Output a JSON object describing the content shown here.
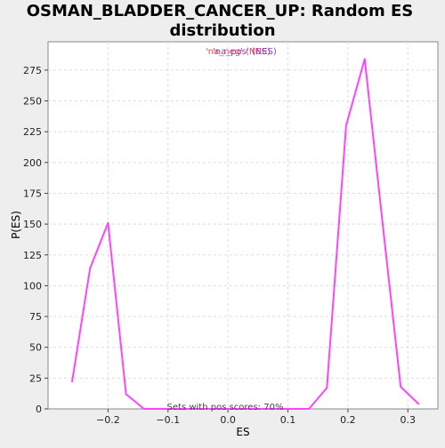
{
  "chart_data": {
    "type": "line",
    "title": "OSMAN_BLADDER_CANCER_UP: Random ES distribution",
    "title_lines": [
      "OSMAN_BLADDER_CANCER_UP: Random ES",
      "distribution"
    ],
    "xlabel": "ES",
    "ylabel": "P(ES)",
    "xlim": [
      -0.3,
      0.35
    ],
    "ylim": [
      0,
      298
    ],
    "x_ticks": [
      -0.2,
      -0.1,
      0.0,
      0.1,
      0.2,
      0.3
    ],
    "x_tick_labels": [
      "−0.2",
      "−0.1",
      "0.0",
      "0.1",
      "0.2",
      "0.3"
    ],
    "y_ticks": [
      0,
      25,
      50,
      75,
      100,
      125,
      150,
      175,
      200,
      225,
      250,
      275
    ],
    "y_tick_labels": [
      "0",
      "25",
      "50",
      "75",
      "100",
      "125",
      "150",
      "175",
      "200",
      "225",
      "250",
      "275"
    ],
    "grid": true,
    "legend_placement": "top-center",
    "legend": [
      {
        "text": "'na_neg' (NES)",
        "color": "#ff4444"
      },
      {
        "text": "'na_pos' (NES)",
        "color": "#8844cc"
      }
    ],
    "annotation": "Sets with pos scores: 70%",
    "series": [
      {
        "color": "#ff44ff",
        "x": [
          -0.26,
          -0.23,
          -0.2,
          -0.17,
          -0.14,
          -0.11,
          -0.08,
          -0.05,
          -0.02,
          0.01,
          0.04,
          0.07,
          0.1,
          0.135,
          0.165,
          0.197,
          0.228,
          0.258,
          0.288,
          0.318
        ],
        "y": [
          22,
          114,
          151,
          12,
          0,
          0,
          0,
          0,
          0,
          0,
          0,
          0,
          0,
          0,
          17,
          230,
          284,
          150,
          18,
          4
        ]
      }
    ]
  }
}
